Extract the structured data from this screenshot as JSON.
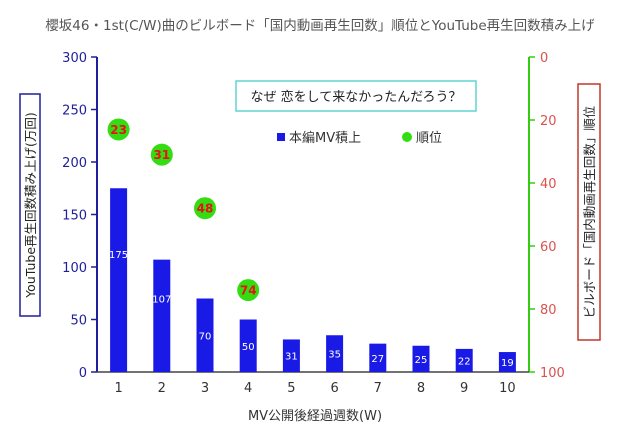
{
  "chart_data": {
    "type": "bar",
    "title": "櫻坂46・1st(C/W)曲のビルボード「国内動画再生回数」順位とYouTube再生回数積み上げ",
    "xlabel": "MV公開後経過週数(W)",
    "ylabel_left": "YouTube再生回数積み上げ(万回)",
    "ylabel_right": "ビルボード「国内動画再生回数」順位",
    "annotation": "なぜ 恋をして来なかったんだろう？",
    "categories": [
      "1",
      "2",
      "3",
      "4",
      "5",
      "6",
      "7",
      "8",
      "9",
      "10"
    ],
    "y_left_ticks": [
      "0",
      "50",
      "100",
      "150",
      "200",
      "250",
      "300"
    ],
    "y_right_ticks": [
      "0",
      "20",
      "40",
      "60",
      "80",
      "100"
    ],
    "ylim_left": [
      0,
      300
    ],
    "ylim_right_inverted": [
      0,
      100
    ],
    "legend_placement": "upper-center",
    "grid": false,
    "series": [
      {
        "name": "本編MV積上",
        "type": "bar",
        "axis": "left",
        "color": "#1a1ae6",
        "values": [
          175,
          107,
          70,
          50,
          31,
          35,
          27,
          25,
          22,
          19
        ],
        "labels": [
          "175",
          "107",
          "70",
          "50",
          "31",
          "35",
          "27",
          "25",
          "22",
          "19"
        ]
      },
      {
        "name": "順位",
        "type": "scatter",
        "axis": "right",
        "color": "#33dd11",
        "points": [
          {
            "x": 1,
            "y": 23,
            "label": "23"
          },
          {
            "x": 2,
            "y": 31,
            "label": "31"
          },
          {
            "x": 3,
            "y": 48,
            "label": "48"
          },
          {
            "x": 4,
            "y": 74,
            "label": "74"
          }
        ]
      }
    ],
    "colors": {
      "left_axis": "#1f1f9a",
      "right_axis": "#33cc11",
      "right_ticks": "#d9534f",
      "right_label_border": "#c0392b",
      "annotation_border": "#5fd3d3"
    }
  }
}
